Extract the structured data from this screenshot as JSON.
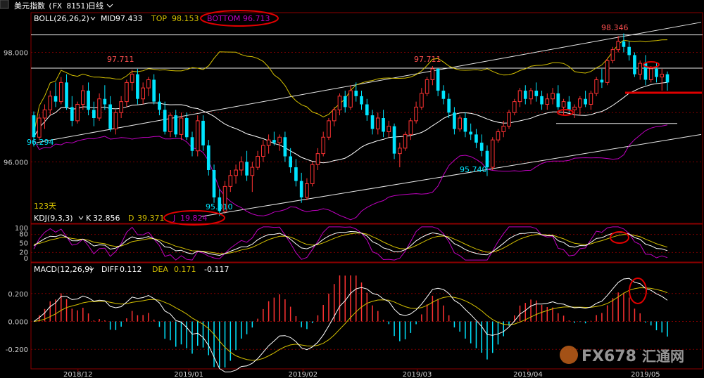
{
  "header": {
    "symbol_label": "美元指数",
    "symbol_code": "(FX 8151)",
    "period_label": "日线",
    "period_icon": "chevron-down-icon"
  },
  "boll_legend": {
    "name": "BOLL(26,26,2)",
    "mid_label": "MID",
    "mid_value": "97.433",
    "top_label": "TOP",
    "top_value": "98.153",
    "bottom_label": "BOTTOM",
    "bottom_value": "96.713"
  },
  "kdj_legend": {
    "name": "KDJ(9,3,3)",
    "k_label": "K",
    "k_value": "32.856",
    "d_label": "D",
    "d_value": "39.371",
    "j_label": "J",
    "j_value": "19.824"
  },
  "macd_legend": {
    "name": "MACD(12,26,9)",
    "diff_label": "DIFF",
    "diff_value": "0.112",
    "dea_label": "DEA",
    "dea_value": "0.171",
    "macd_value": "-0.117"
  },
  "annotations": {
    "price_97711_left": "97.711",
    "price_97711_right": "97.711",
    "price_98346": "98.346",
    "price_95740": "95.740",
    "price_95010": "95.010",
    "price_96294": "96.294",
    "days_label": "123天"
  },
  "watermark": {
    "brand": "FX678",
    "brand_cn": "汇通网"
  },
  "colors": {
    "up": "#ff3232",
    "down": "#00e5ff",
    "mid": "#ffffff",
    "band": "#d4c000",
    "lower_band": "#c000c0",
    "grid": "#7a0000",
    "highlight": "#e00000"
  },
  "chart_data": [
    {
      "type": "candlestick",
      "title": "",
      "yticks": [
        "98.000",
        "96.000"
      ],
      "ylim": [
        94.9,
        98.7
      ],
      "xticks": [
        "2018/12",
        "2019/01",
        "2019/02",
        "2019/03",
        "2019/04",
        "2019/05"
      ],
      "series": [
        {
          "name": "MID",
          "last": 97.433
        },
        {
          "name": "TOP",
          "last": 98.153
        },
        {
          "name": "BOTTOM",
          "last": 96.713
        }
      ],
      "annotations": {
        "high": 98.346,
        "low": 95.01,
        "swing_low": 95.74,
        "resistance": 97.711,
        "left_label": 96.294
      },
      "ohlc": [
        [
          96.85,
          96.92,
          96.28,
          96.45
        ],
        [
          96.45,
          96.88,
          96.4,
          96.8
        ],
        [
          96.8,
          97.05,
          96.6,
          96.95
        ],
        [
          96.95,
          97.3,
          96.85,
          97.2
        ],
        [
          97.2,
          97.45,
          97.0,
          97.1
        ],
        [
          97.1,
          97.55,
          97.05,
          97.45
        ],
        [
          97.45,
          97.6,
          96.95,
          97.0
        ],
        [
          97.0,
          97.2,
          96.65,
          96.75
        ],
        [
          96.75,
          97.1,
          96.7,
          97.05
        ],
        [
          97.05,
          97.4,
          96.95,
          97.3
        ],
        [
          97.3,
          97.45,
          96.85,
          96.95
        ],
        [
          96.95,
          97.1,
          96.65,
          96.8
        ],
        [
          96.8,
          97.25,
          96.75,
          97.15
        ],
        [
          97.15,
          97.4,
          96.95,
          97.05
        ],
        [
          97.05,
          97.2,
          96.55,
          96.6
        ],
        [
          96.6,
          96.95,
          96.5,
          96.9
        ],
        [
          96.9,
          97.2,
          96.8,
          97.1
        ],
        [
          97.1,
          97.5,
          97.0,
          97.45
        ],
        [
          97.45,
          97.68,
          97.3,
          97.6
        ],
        [
          97.6,
          97.7,
          97.05,
          97.15
        ],
        [
          97.15,
          97.45,
          97.05,
          97.35
        ],
        [
          97.35,
          97.55,
          97.2,
          97.5
        ],
        [
          97.5,
          97.6,
          97.05,
          97.1
        ],
        [
          97.1,
          97.25,
          96.85,
          96.95
        ],
        [
          96.95,
          97.1,
          96.5,
          96.55
        ],
        [
          96.55,
          96.9,
          96.45,
          96.85
        ],
        [
          96.85,
          96.95,
          96.45,
          96.5
        ],
        [
          96.5,
          96.9,
          96.4,
          96.8
        ],
        [
          96.8,
          96.9,
          96.4,
          96.45
        ],
        [
          96.45,
          96.55,
          96.1,
          96.2
        ],
        [
          96.2,
          96.85,
          96.1,
          96.75
        ],
        [
          96.75,
          96.85,
          96.2,
          96.3
        ],
        [
          96.3,
          96.4,
          95.75,
          95.85
        ],
        [
          95.85,
          95.95,
          95.25,
          95.35
        ],
        [
          95.35,
          95.5,
          95.01,
          95.1
        ],
        [
          95.1,
          95.65,
          95.05,
          95.55
        ],
        [
          95.55,
          95.85,
          95.45,
          95.75
        ],
        [
          95.75,
          95.95,
          95.6,
          95.85
        ],
        [
          95.85,
          96.1,
          95.75,
          96.0
        ],
        [
          96.0,
          96.2,
          95.65,
          95.75
        ],
        [
          95.75,
          96.0,
          95.45,
          95.9
        ],
        [
          95.9,
          96.2,
          95.85,
          96.1
        ],
        [
          96.1,
          96.4,
          96.0,
          96.3
        ],
        [
          96.3,
          96.5,
          96.15,
          96.4
        ],
        [
          96.4,
          96.55,
          96.3,
          96.35
        ],
        [
          96.35,
          96.5,
          96.2,
          96.45
        ],
        [
          96.45,
          96.55,
          96.0,
          96.1
        ],
        [
          96.1,
          96.25,
          95.8,
          95.9
        ],
        [
          95.9,
          96.05,
          95.55,
          95.65
        ],
        [
          95.65,
          95.8,
          95.25,
          95.35
        ],
        [
          95.35,
          95.7,
          95.3,
          95.6
        ],
        [
          95.6,
          96.0,
          95.55,
          95.95
        ],
        [
          95.95,
          96.25,
          95.85,
          96.15
        ],
        [
          96.15,
          96.55,
          96.1,
          96.45
        ],
        [
          96.45,
          96.8,
          96.4,
          96.75
        ],
        [
          96.75,
          97.0,
          96.65,
          96.95
        ],
        [
          96.95,
          97.25,
          96.85,
          97.2
        ],
        [
          97.2,
          97.3,
          96.9,
          97.0
        ],
        [
          97.0,
          97.4,
          96.95,
          97.3
        ],
        [
          97.3,
          97.45,
          97.1,
          97.2
        ],
        [
          97.2,
          97.3,
          96.95,
          97.05
        ],
        [
          97.05,
          97.15,
          96.75,
          96.85
        ],
        [
          96.85,
          96.95,
          96.5,
          96.6
        ],
        [
          96.6,
          96.9,
          96.5,
          96.8
        ],
        [
          96.8,
          96.95,
          96.45,
          96.55
        ],
        [
          96.55,
          96.75,
          96.45,
          96.65
        ],
        [
          96.65,
          96.7,
          96.05,
          96.15
        ],
        [
          96.15,
          96.35,
          95.9,
          96.25
        ],
        [
          96.25,
          96.55,
          96.2,
          96.5
        ],
        [
          96.5,
          96.8,
          96.4,
          96.75
        ],
        [
          96.75,
          97.1,
          96.7,
          97.0
        ],
        [
          97.0,
          97.35,
          96.95,
          97.25
        ],
        [
          97.25,
          97.55,
          97.2,
          97.5
        ],
        [
          97.5,
          97.75,
          97.4,
          97.7
        ],
        [
          97.7,
          97.71,
          97.2,
          97.3
        ],
        [
          97.3,
          97.4,
          97.05,
          97.15
        ],
        [
          97.15,
          97.25,
          96.8,
          96.9
        ],
        [
          96.9,
          97.0,
          96.5,
          96.6
        ],
        [
          96.6,
          96.85,
          96.55,
          96.8
        ],
        [
          96.8,
          96.9,
          96.45,
          96.55
        ],
        [
          96.55,
          96.7,
          96.4,
          96.5
        ],
        [
          96.5,
          96.6,
          96.25,
          96.35
        ],
        [
          96.35,
          96.5,
          96.1,
          96.2
        ],
        [
          96.2,
          96.3,
          95.74,
          95.9
        ],
        [
          95.9,
          96.45,
          95.85,
          96.4
        ],
        [
          96.4,
          96.6,
          96.35,
          96.55
        ],
        [
          96.55,
          96.75,
          96.45,
          96.65
        ],
        [
          96.65,
          96.95,
          96.6,
          96.9
        ],
        [
          96.9,
          97.15,
          96.85,
          97.1
        ],
        [
          97.1,
          97.35,
          97.0,
          97.3
        ],
        [
          97.3,
          97.4,
          97.05,
          97.15
        ],
        [
          97.15,
          97.35,
          97.05,
          97.3
        ],
        [
          97.3,
          97.45,
          97.1,
          97.2
        ],
        [
          97.2,
          97.3,
          96.95,
          97.05
        ],
        [
          97.05,
          97.25,
          96.95,
          97.15
        ],
        [
          97.15,
          97.35,
          97.05,
          97.25
        ],
        [
          97.25,
          97.4,
          96.95,
          97.0
        ],
        [
          97.0,
          97.15,
          96.85,
          97.1
        ],
        [
          97.1,
          97.2,
          96.9,
          96.95
        ],
        [
          96.95,
          97.05,
          96.8,
          97.0
        ],
        [
          97.0,
          97.2,
          96.85,
          97.15
        ],
        [
          97.15,
          97.3,
          97.0,
          97.05
        ],
        [
          97.05,
          97.3,
          96.95,
          97.25
        ],
        [
          97.25,
          97.55,
          97.2,
          97.5
        ],
        [
          97.5,
          97.7,
          97.35,
          97.45
        ],
        [
          97.45,
          97.9,
          97.4,
          97.85
        ],
        [
          97.85,
          98.1,
          97.8,
          98.05
        ],
        [
          98.05,
          98.3,
          98.0,
          98.2
        ],
        [
          98.2,
          98.346,
          98.0,
          98.1
        ],
        [
          98.1,
          98.2,
          97.85,
          97.95
        ],
        [
          97.95,
          98.0,
          97.55,
          97.6
        ],
        [
          97.6,
          97.85,
          97.5,
          97.8
        ],
        [
          97.8,
          97.95,
          97.4,
          97.5
        ],
        [
          97.5,
          97.75,
          97.45,
          97.7
        ],
        [
          97.7,
          97.8,
          97.45,
          97.55
        ],
        [
          97.55,
          97.7,
          97.3,
          97.6
        ],
        [
          97.6,
          97.65,
          97.3,
          97.45
        ]
      ]
    },
    {
      "type": "line",
      "title": "KDJ(9,3,3)",
      "yticks": [
        "100",
        "80",
        "50",
        "20",
        "0"
      ],
      "ylim": [
        0,
        100
      ],
      "series": [
        {
          "name": "K",
          "last": 32.856
        },
        {
          "name": "D",
          "last": 39.371
        },
        {
          "name": "J",
          "last": 19.824
        }
      ]
    },
    {
      "type": "bar",
      "title": "MACD(12,26,9)",
      "yticks": [
        "0.200",
        "0.000",
        "-0.200"
      ],
      "ylim": [
        -0.33,
        0.33
      ],
      "series": [
        {
          "name": "DIFF",
          "last": 0.112
        },
        {
          "name": "DEA",
          "last": 0.171
        },
        {
          "name": "MACD",
          "last": -0.117
        }
      ]
    }
  ]
}
